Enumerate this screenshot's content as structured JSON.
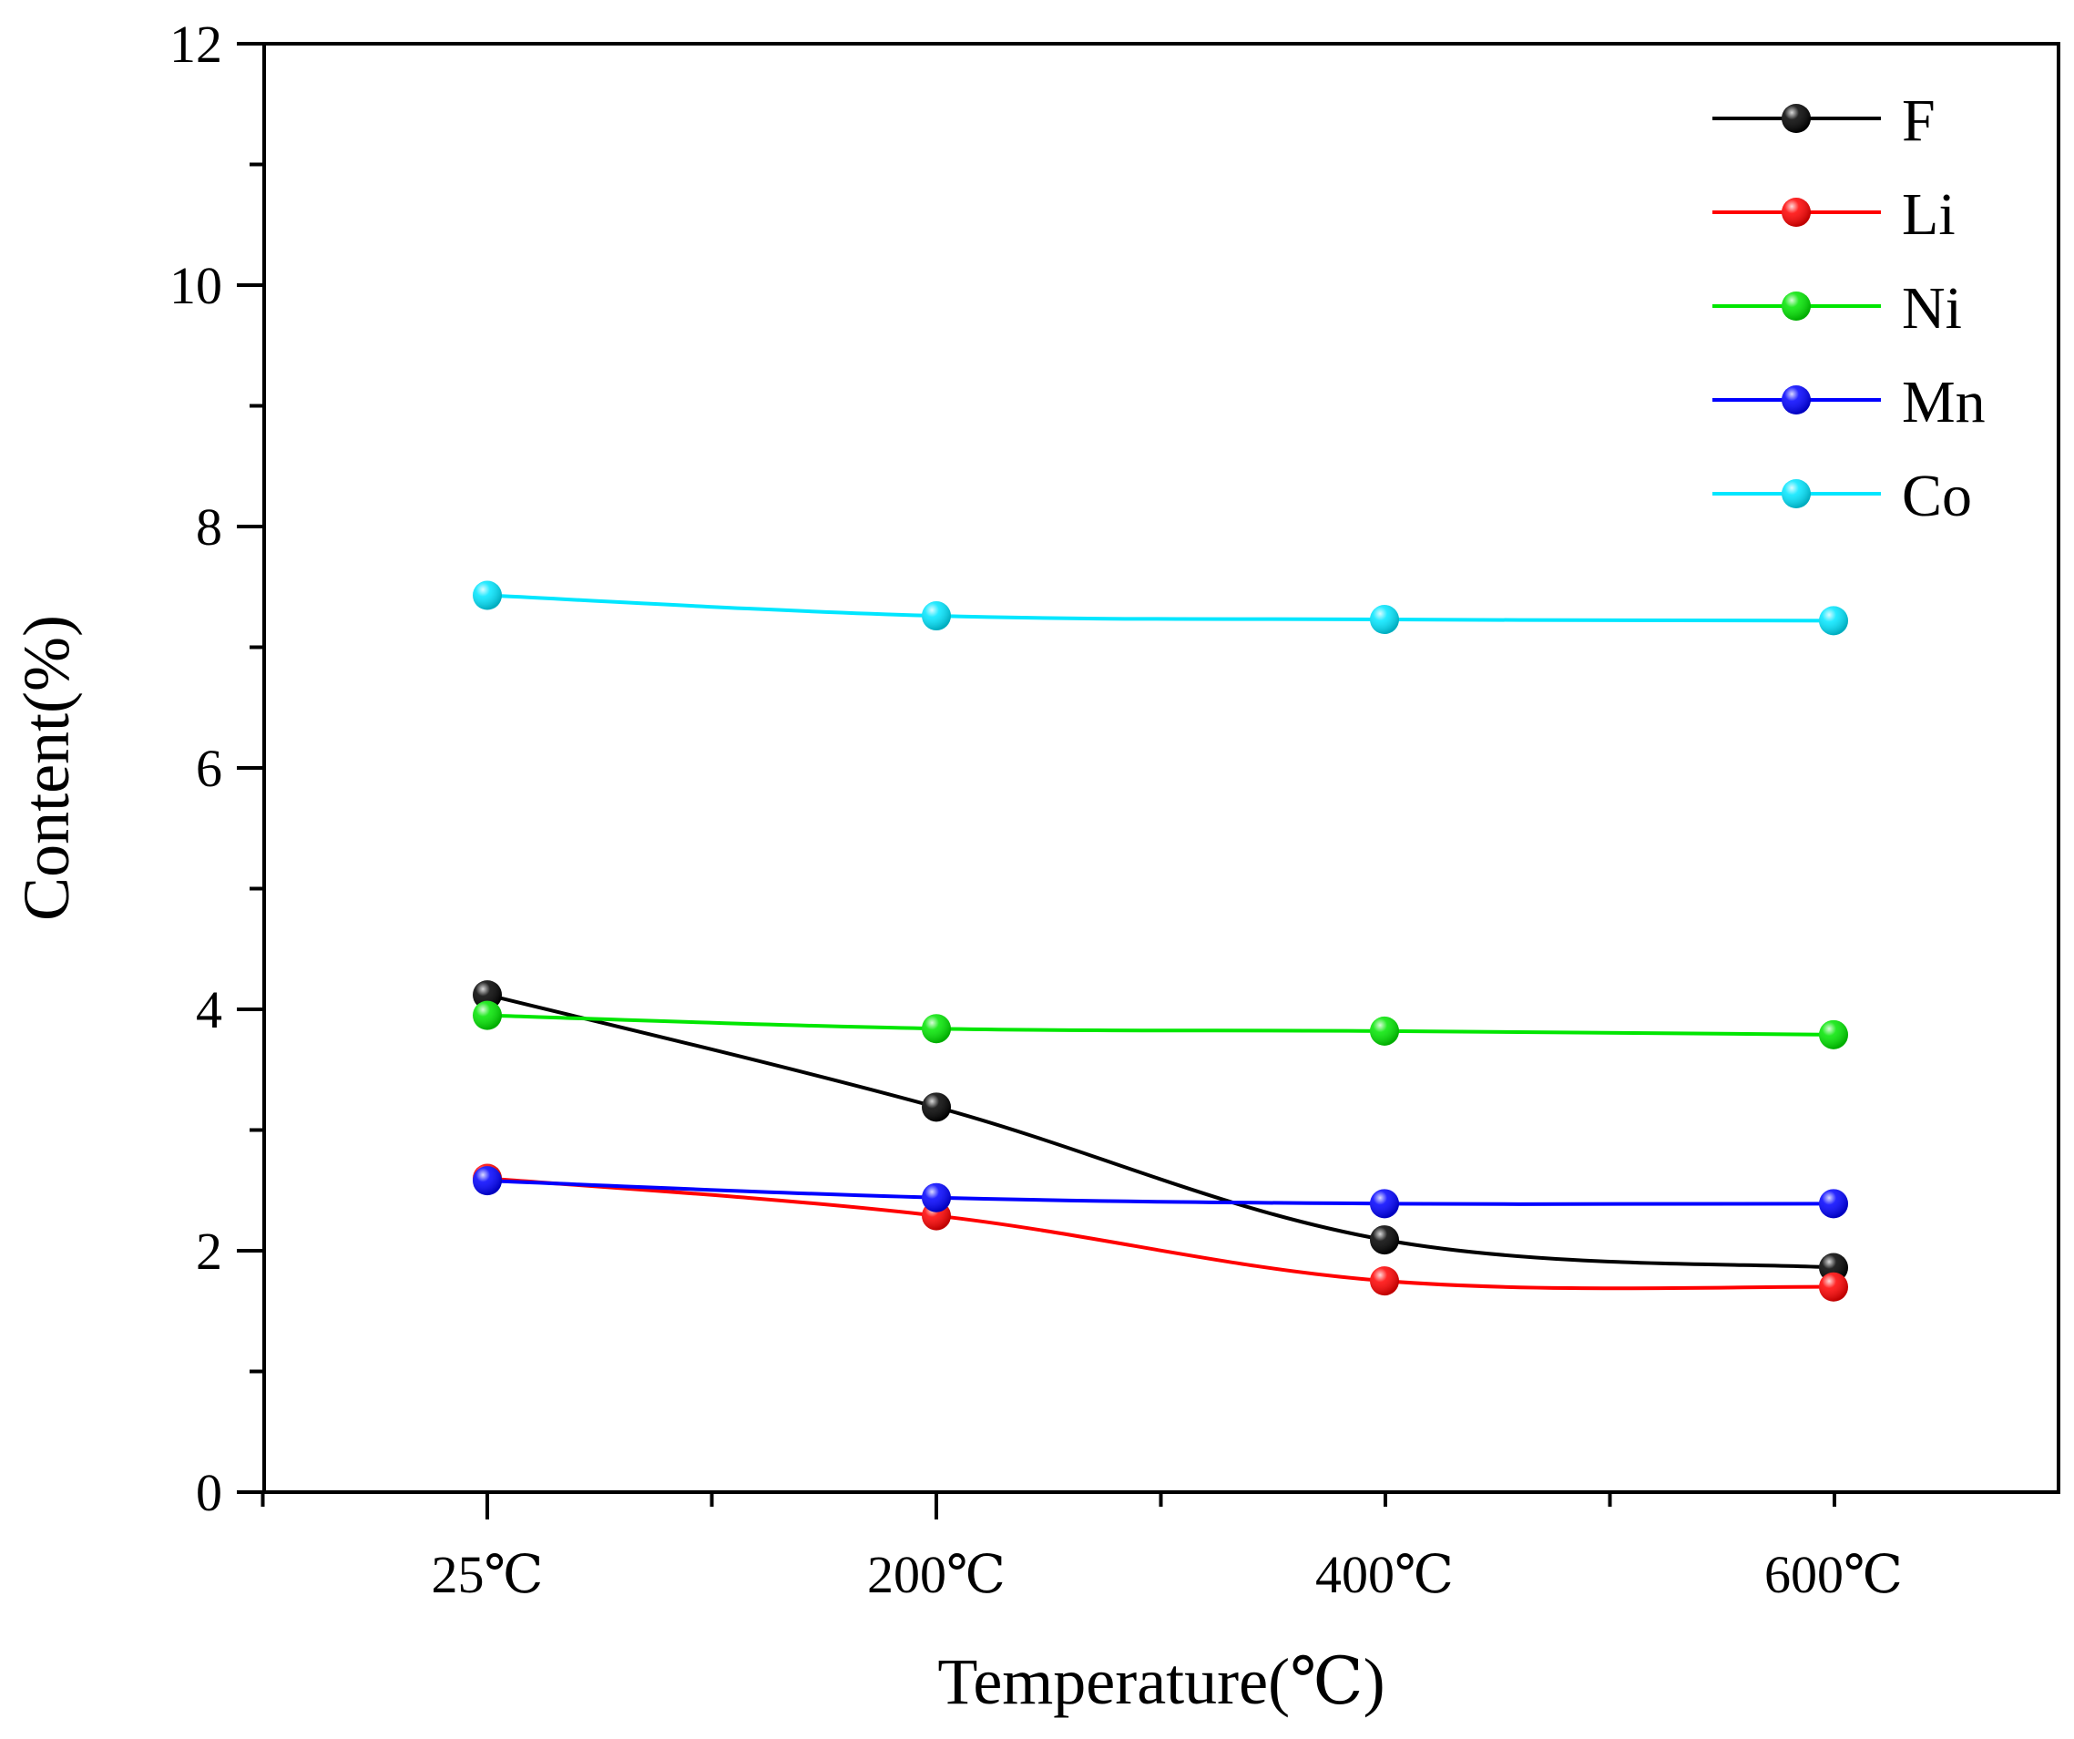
{
  "chart_data": {
    "type": "line",
    "title": "",
    "xlabel": "Temperature(℃)",
    "ylabel": "Content(%)",
    "categories": [
      "25℃",
      "200℃",
      "400℃",
      "600℃"
    ],
    "ylim": [
      0,
      12
    ],
    "yticks": [
      "0",
      "2",
      "4",
      "6",
      "8",
      "10",
      "12"
    ],
    "legend_position": "top-right",
    "grid": false,
    "series": [
      {
        "name": "F",
        "color": "#000000",
        "values": [
          4.12,
          3.19,
          2.09,
          1.86
        ]
      },
      {
        "name": "Li",
        "color": "#ff0000",
        "values": [
          2.6,
          2.29,
          1.75,
          1.7
        ]
      },
      {
        "name": "Ni",
        "color": "#00e600",
        "values": [
          3.95,
          3.84,
          3.82,
          3.79
        ]
      },
      {
        "name": "Mn",
        "color": "#0000ff",
        "values": [
          2.58,
          2.44,
          2.39,
          2.39
        ]
      },
      {
        "name": "Co",
        "color": "#00e6ff",
        "values": [
          7.43,
          7.26,
          7.23,
          7.22
        ]
      }
    ]
  }
}
